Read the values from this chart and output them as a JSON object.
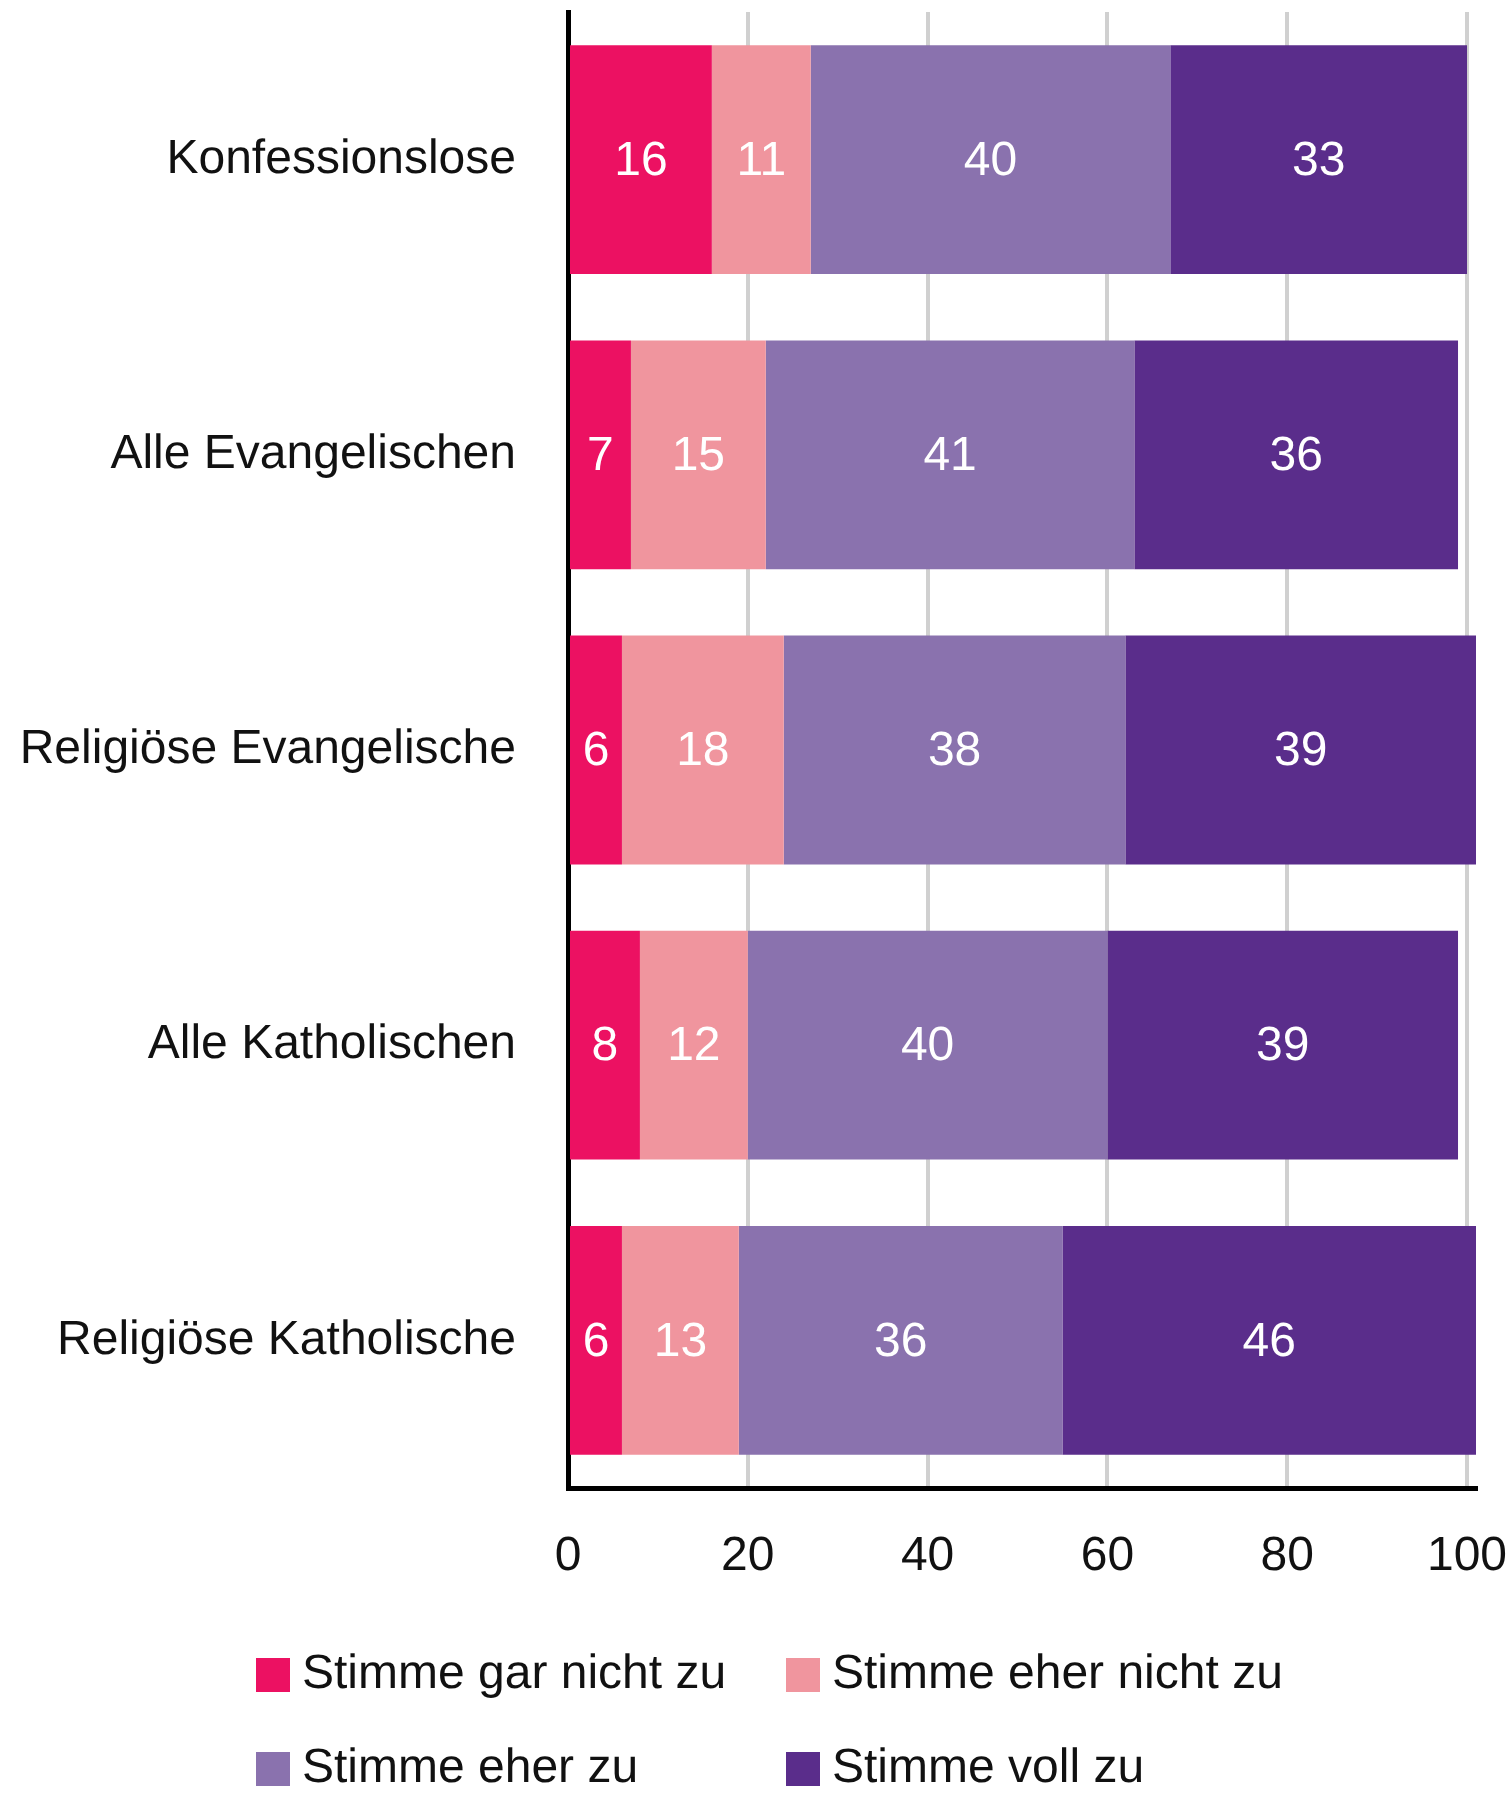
{
  "chart_data": {
    "type": "bar",
    "orientation": "horizontal",
    "stacked": true,
    "categories": [
      "Konfessionslose",
      "Alle Evangelischen",
      "Religiöse Evangelische",
      "Alle Katholischen",
      "Religiöse Katholische"
    ],
    "series": [
      {
        "name": "Stimme gar nicht zu",
        "color": "#ec1162",
        "values": [
          16,
          7,
          6,
          8,
          6
        ]
      },
      {
        "name": "Stimme eher nicht zu",
        "color": "#f0959e",
        "values": [
          11,
          15,
          18,
          12,
          13
        ]
      },
      {
        "name": "Stimme eher zu",
        "color": "#8a72ae",
        "values": [
          40,
          41,
          38,
          40,
          36
        ]
      },
      {
        "name": "Stimme voll zu",
        "color": "#5a2d8b",
        "values": [
          33,
          36,
          39,
          39,
          46
        ]
      }
    ],
    "xlim": [
      0,
      101
    ],
    "xticks": [
      0,
      20,
      40,
      60,
      80,
      100
    ],
    "grid": "x",
    "legend": "bottom",
    "data_labels": true
  }
}
